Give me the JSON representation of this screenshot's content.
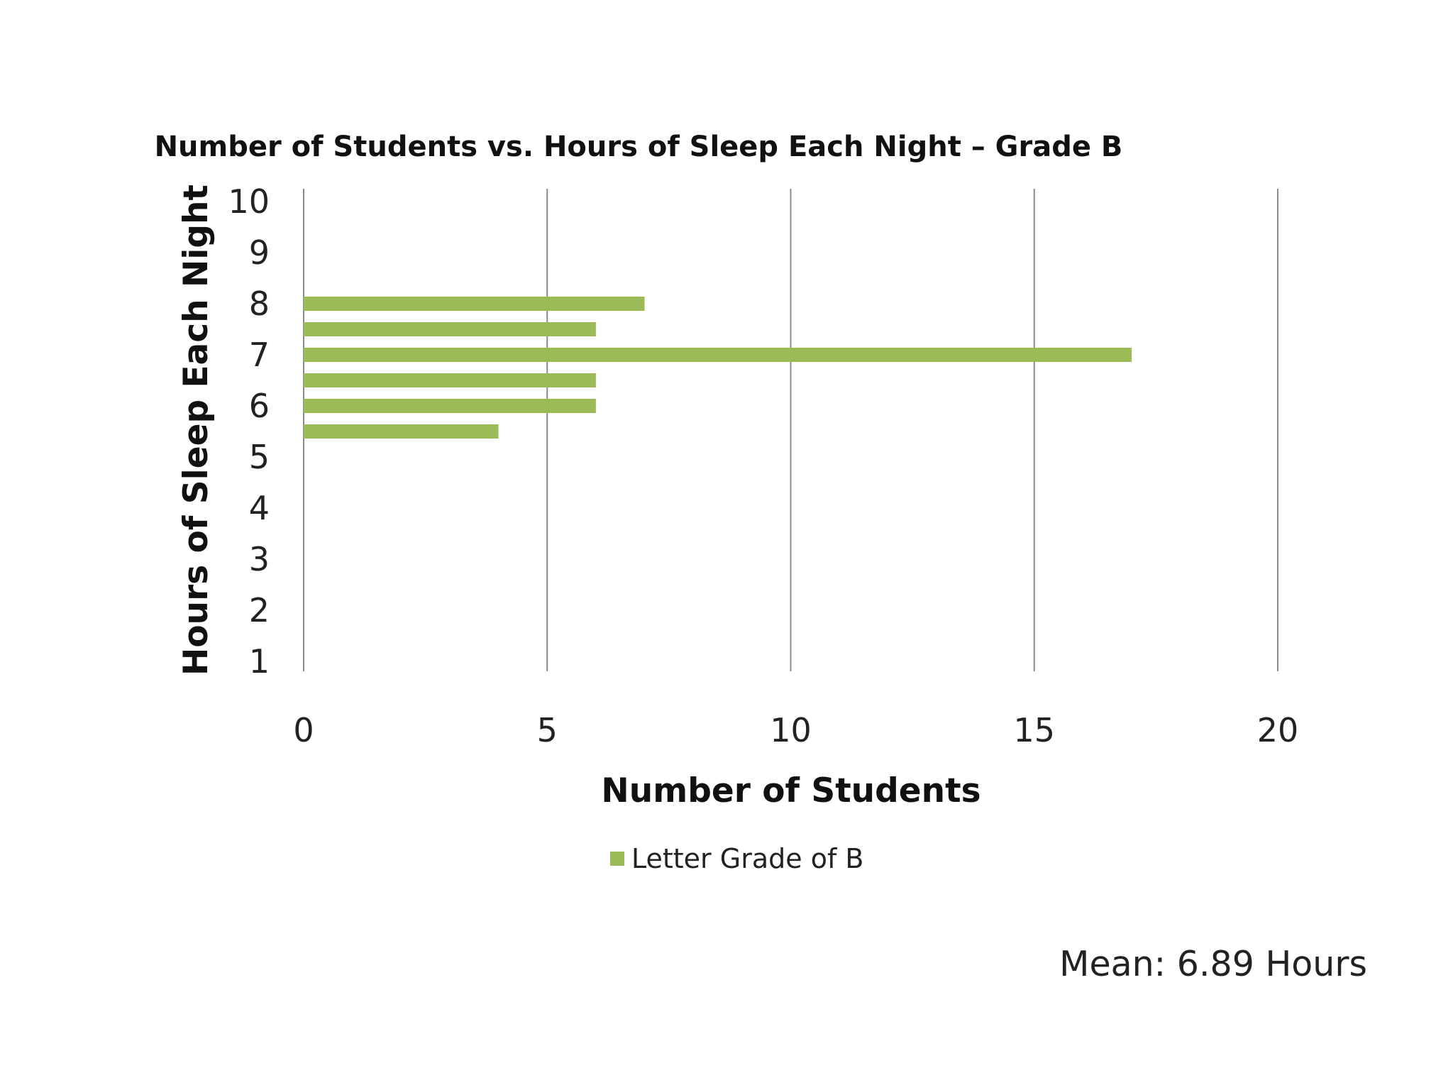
{
  "chart_data": {
    "type": "bar",
    "orientation": "horizontal",
    "title": "Number of Students vs. Hours of Sleep Each Night – Grade B",
    "xlabel": "Number of Students",
    "ylabel": "Hours of Sleep Each Night",
    "xlim": [
      0,
      20
    ],
    "xticks": [
      0,
      5,
      10,
      15,
      20
    ],
    "ylim": [
      1,
      10
    ],
    "yticks": [
      1,
      2,
      3,
      4,
      5,
      6,
      7,
      8,
      9,
      10
    ],
    "grid": "vertical",
    "legend_position": "bottom",
    "series": [
      {
        "name": "Letter Grade of B",
        "color": "#9bbb59",
        "points": [
          {
            "hours": 8,
            "students": 7
          },
          {
            "hours": 7.5,
            "students": 6
          },
          {
            "hours": 7,
            "students": 17
          },
          {
            "hours": 6.5,
            "students": 6
          },
          {
            "hours": 6,
            "students": 6
          },
          {
            "hours": 5.5,
            "students": 4
          }
        ]
      }
    ]
  },
  "annotation": "Mean: 6.89 Hours"
}
